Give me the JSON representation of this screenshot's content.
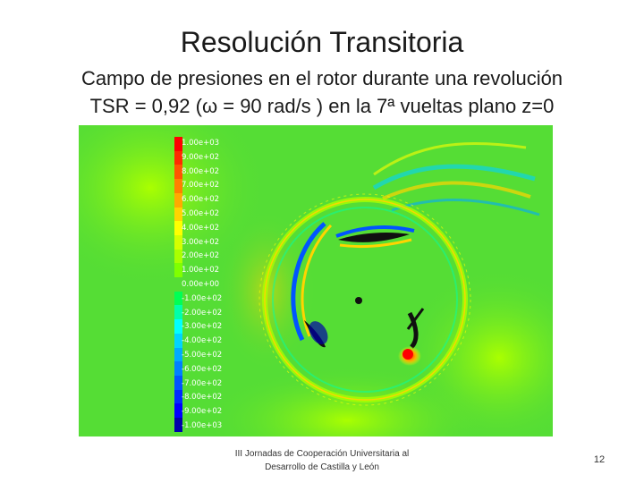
{
  "slide": {
    "title": "Resolución Transitoria",
    "subtitle_line1": "Campo de presiones en el rotor durante una revolución",
    "subtitle_line2": "TSR = 0,92 (ω = 90 rad/s ) en la 7ª vueltas plano z=0",
    "footer_line1": "III Jornadas de Cooperación Universitaria al",
    "footer_line2": "Desarrollo de Castilla y León",
    "page_number": "12"
  },
  "contour_legend": {
    "labels": [
      "1.00e+03",
      "9.00e+02",
      "8.00e+02",
      "7.00e+02",
      "6.00e+02",
      "5.00e+02",
      "4.00e+02",
      "3.00e+02",
      "2.00e+02",
      "1.00e+02",
      "0.00e+00",
      "-1.00e+02",
      "-2.00e+02",
      "-3.00e+02",
      "-4.00e+02",
      "-5.00e+02",
      "-6.00e+02",
      "-7.00e+02",
      "-8.00e+02",
      "-9.00e+02",
      "-1.00e+03"
    ],
    "colors": [
      "#ff0000",
      "#ff2a00",
      "#ff5500",
      "#ff8000",
      "#ffaa00",
      "#ffd400",
      "#ffff00",
      "#d4ff00",
      "#aaff00",
      "#80ff00",
      "#55dd35",
      "#00ff55",
      "#00ffaa",
      "#00ffff",
      "#00d4ff",
      "#00aaff",
      "#0080ff",
      "#0055ff",
      "#002aff",
      "#0000ff",
      "#0000aa"
    ]
  }
}
